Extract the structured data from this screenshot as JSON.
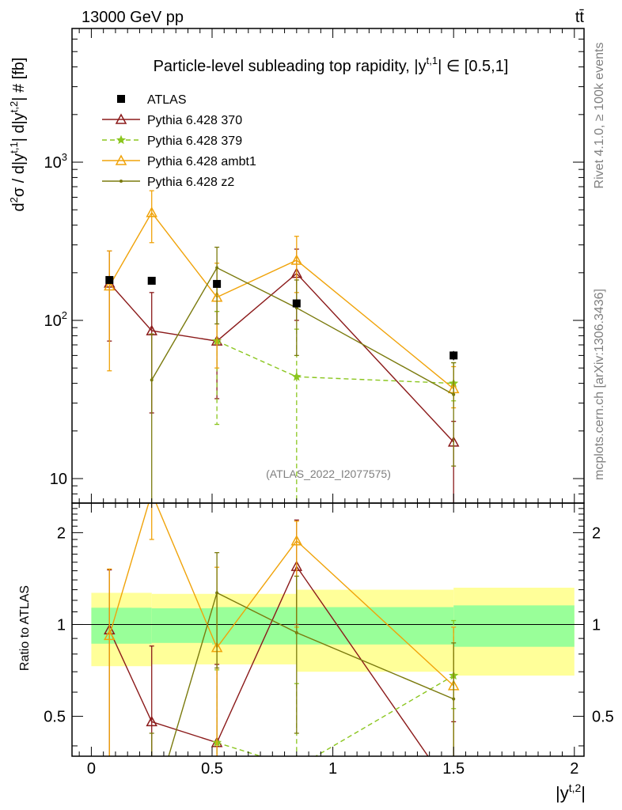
{
  "header": {
    "left": "13000 GeV pp",
    "right": "tt̄"
  },
  "side_text": {
    "top": "Rivet 4.1.0, ≥ 100k events",
    "bottom": "mcplots.cern.ch [arXiv:1306.3436]"
  },
  "chart_data": {
    "type": "line",
    "title": "Particle-level subleading top rapidity, |y^{t,1}| ∈ [0.5,1]",
    "title_main": "Particle-level subleading top rapidity, |y",
    "title_sup": "t,1",
    "title_end": "| ∈ [0.5,1]",
    "watermark": "(ATLAS_2022_I2077575)",
    "xlabel": "|y^{t,2}|",
    "ylabel": "d²σ / d|y^{t,1}| d|y^{t,2}| # [fb]",
    "ratio_ylabel": "Ratio to ATLAS",
    "xlim": [
      -0.08,
      2.04
    ],
    "ylim": [
      7,
      7000
    ],
    "yscale": "log",
    "ratio_ylim": [
      0.37,
      2.5
    ],
    "x_ticks": [
      "0",
      "0.5",
      "1",
      "1.5",
      "2"
    ],
    "y_ticks": [
      "10",
      "10²",
      "10³"
    ],
    "ratio_ticks": [
      "0.5",
      "1",
      "2"
    ],
    "bins": [
      [
        0,
        0.25
      ],
      [
        0.25,
        0.5
      ],
      [
        0.5,
        0.85
      ],
      [
        0.85,
        1.5
      ],
      [
        1.5,
        2.0
      ]
    ],
    "x": [
      0.075,
      0.25,
      0.52,
      0.85,
      1.5
    ],
    "data": {
      "name": "ATLAS",
      "values": [
        180,
        178,
        170,
        128,
        60
      ],
      "errors": [
        5,
        5,
        5,
        4,
        4
      ]
    },
    "band_green": [
      0.135,
      0.13,
      0.14,
      0.14,
      0.155
    ],
    "band_yellow": [
      0.27,
      0.26,
      0.26,
      0.3,
      0.32
    ],
    "series": [
      {
        "name": "Pythia 6.428 370",
        "color": "#8B1A1A",
        "marker": "triangle",
        "dash": "none",
        "x": [
          0.075,
          0.25,
          0.52,
          0.85,
          1.5
        ],
        "values": [
          172,
          86,
          74,
          198,
          17
        ],
        "err_low": [
          98,
          60,
          42,
          98,
          12
        ],
        "err_high": [
          103,
          64,
          40,
          84,
          6
        ]
      },
      {
        "name": "Pythia 6.428 379",
        "color": "#8BC61F",
        "marker": "star",
        "dash": "6,4",
        "x": [
          0.52,
          0.85,
          1.5
        ],
        "values": [
          74,
          44,
          40
        ],
        "err_low": [
          52,
          43,
          9
        ],
        "err_high": [
          40,
          44,
          14
        ]
      },
      {
        "name": "Pythia 6.428 ambt1",
        "color": "#F0A30A",
        "marker": "triangle",
        "dash": "none",
        "x": [
          0.075,
          0.25,
          0.52,
          0.85,
          1.5
        ],
        "values": [
          165,
          480,
          140,
          240,
          37
        ],
        "err_low": [
          117,
          170,
          90,
          90,
          9
        ],
        "err_high": [
          110,
          180,
          90,
          100,
          14
        ]
      },
      {
        "name": "Pythia 6.428 z2",
        "color": "#7A7A0D",
        "marker": "dot",
        "dash": "none",
        "x": [
          0.25,
          0.52,
          0.85,
          1.5
        ],
        "values": [
          42,
          215,
          120,
          34
        ],
        "err_low": [
          40,
          120,
          60,
          22
        ],
        "err_high": [
          40,
          75,
          60,
          20
        ]
      }
    ],
    "ratio_series": [
      {
        "name": "Pythia 6.428 370",
        "x": [
          0.075,
          0.25,
          0.52,
          0.85,
          1.5
        ],
        "values": [
          0.96,
          0.48,
          0.41,
          1.55,
          0.28
        ],
        "err_low": [
          0.62,
          0.2,
          0.2,
          0.55,
          0.2
        ],
        "err_high": [
          0.55,
          0.37,
          0.33,
          0.65,
          0.2
        ]
      },
      {
        "name": "Pythia 6.428 379",
        "x": [
          0.52,
          0.85,
          1.5
        ],
        "values": [
          0.41,
          0.34,
          0.68
        ],
        "err_low": [
          0.3,
          0.3,
          0.15
        ],
        "err_high": [
          0.3,
          0.3,
          0.35
        ]
      },
      {
        "name": "Pythia 6.428 ambt1",
        "x": [
          0.075,
          0.25,
          0.52,
          0.85,
          1.5
        ],
        "values": [
          0.92,
          2.7,
          0.84,
          1.88,
          0.63
        ],
        "err_low": [
          0.6,
          0.8,
          0.5,
          0.9,
          0.3
        ],
        "err_high": [
          0.6,
          0.8,
          0.7,
          0.3,
          0.35
        ]
      },
      {
        "name": "Pythia 6.428 z2",
        "x": [
          0.25,
          0.52,
          0.85,
          1.5
        ],
        "values": [
          0.24,
          1.27,
          0.94,
          0.57
        ],
        "err_low": [
          0.2,
          0.55,
          0.5,
          0.3
        ],
        "err_high": [
          0.2,
          0.45,
          0.5,
          0.3
        ]
      }
    ]
  }
}
